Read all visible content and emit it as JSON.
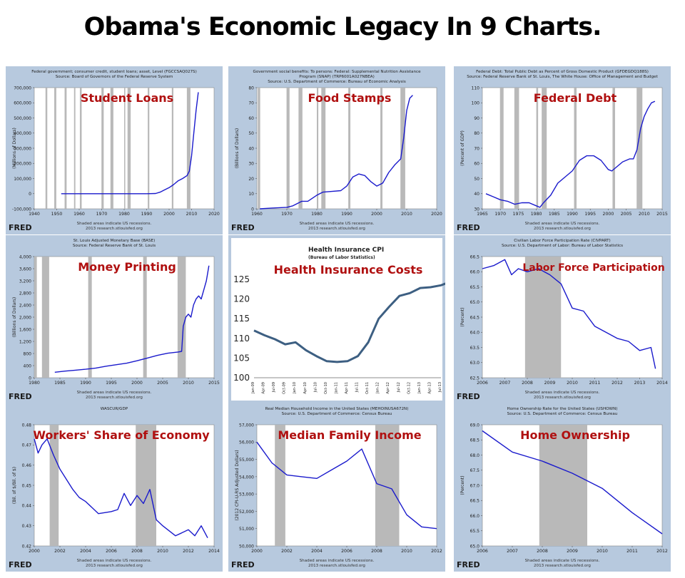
{
  "title": "Obama's Economic Legacy In 9 Charts.",
  "chart_data": [
    {
      "type": "line",
      "overlay": "Student Loans",
      "title": "Federal government; consumer credit, student loans; asset, Level (FGCCSAQ027S)",
      "subtitle": "Source: Board of Governors of the Federal Reserve System",
      "ylabel": "(Millions of Dollars)",
      "xlim": [
        1940,
        2020
      ],
      "ylim": [
        -100000,
        700000
      ],
      "xticks": [
        1940,
        1950,
        1960,
        1970,
        1980,
        1990,
        2000,
        2010,
        2020
      ],
      "yticks": [
        -100000,
        0,
        100000,
        200000,
        300000,
        400000,
        500000,
        600000,
        700000
      ],
      "ytick_labels": [
        "-100,000",
        "0",
        "100,000",
        "200,000",
        "300,000",
        "400,000",
        "500,000",
        "600,000",
        "700,000"
      ],
      "recessions": [
        [
          1945,
          1945.8
        ],
        [
          1948.9,
          1949.8
        ],
        [
          1953.5,
          1954.4
        ],
        [
          1957.7,
          1958.3
        ],
        [
          1960.3,
          1961.1
        ],
        [
          1969.9,
          1970.9
        ],
        [
          1973.9,
          1975.2
        ],
        [
          1980,
          1980.5
        ],
        [
          1981.5,
          1982.9
        ],
        [
          1990.5,
          1991.2
        ],
        [
          2001.2,
          2001.9
        ],
        [
          2007.9,
          2009.5
        ]
      ],
      "x": [
        1952,
        1960,
        1970,
        1980,
        1990,
        1994,
        1996,
        1998,
        2000,
        2002,
        2004,
        2006,
        2008,
        2009,
        2010,
        2011,
        2012,
        2013
      ],
      "y": [
        0,
        0,
        0,
        0,
        0,
        1000,
        10000,
        25000,
        40000,
        60000,
        85000,
        100000,
        120000,
        150000,
        250000,
        400000,
        550000,
        670000
      ],
      "fred": "FRED",
      "notes": [
        "Shaded areas indicate US recessions.",
        "2013 research.stlouisfed.org"
      ]
    },
    {
      "type": "line",
      "overlay": "Food Stamps",
      "title": "Government social benefits: To persons: Federal: Supplemental Nutrition Assistance",
      "title2": "Program (SNAP) (TRP6001A027NBEA)",
      "subtitle": "Source: U.S. Department of Commerce: Bureau of Economic Analysis",
      "ylabel": "(Billions of Dollars)",
      "xlim": [
        1960,
        2020
      ],
      "ylim": [
        0,
        80
      ],
      "xticks": [
        1960,
        1970,
        1980,
        1990,
        2000,
        2010,
        2020
      ],
      "yticks": [
        0,
        10,
        20,
        30,
        40,
        50,
        60,
        70,
        80
      ],
      "ytick_labels": [
        "0",
        "10",
        "20",
        "30",
        "40",
        "50",
        "60",
        "70",
        "80"
      ],
      "recessions": [
        [
          1960.3,
          1961.1
        ],
        [
          1969.9,
          1970.9
        ],
        [
          1973.9,
          1975.2
        ],
        [
          1980,
          1980.5
        ],
        [
          1981.5,
          1982.9
        ],
        [
          1990.5,
          1991.2
        ],
        [
          2001.2,
          2001.9
        ],
        [
          2007.9,
          2009.5
        ]
      ],
      "x": [
        1961,
        1965,
        1970,
        1972,
        1975,
        1977,
        1980,
        1982,
        1985,
        1988,
        1990,
        1992,
        1994,
        1996,
        1998,
        2000,
        2002,
        2004,
        2006,
        2008,
        2009,
        2010,
        2011,
        2012
      ],
      "y": [
        0,
        0.5,
        1,
        2,
        5,
        5,
        9,
        11,
        11.5,
        12,
        15,
        21,
        23,
        22,
        18,
        15,
        17,
        24,
        29,
        33,
        47,
        65,
        73,
        75
      ],
      "fred": "FRED",
      "notes": [
        "Shaded areas indicate US recessions.",
        "2013 research.stlouisfed.org"
      ]
    },
    {
      "type": "line",
      "overlay": "Federal Debt",
      "title": "Federal Debt: Total Public Debt as Percent of Gross Domestic Product (GFDEGDQ188S)",
      "subtitle": "Source: Federal Reserve Bank of St. Louis, The White House: Office of Management and Budget",
      "ylabel": "(Percent of GDP)",
      "xlim": [
        1965,
        2015
      ],
      "ylim": [
        30,
        110
      ],
      "xticks": [
        1965,
        1970,
        1975,
        1980,
        1985,
        1990,
        1995,
        2000,
        2005,
        2010,
        2015
      ],
      "yticks": [
        30,
        40,
        50,
        60,
        70,
        80,
        90,
        100,
        110
      ],
      "ytick_labels": [
        "30",
        "40",
        "50",
        "60",
        "70",
        "80",
        "90",
        "100",
        "110"
      ],
      "recessions": [
        [
          1969.9,
          1970.9
        ],
        [
          1973.9,
          1975.2
        ],
        [
          1980,
          1980.5
        ],
        [
          1981.5,
          1982.9
        ],
        [
          1990.5,
          1991.2
        ],
        [
          2001.2,
          2001.9
        ],
        [
          2007.9,
          2009.5
        ]
      ],
      "x": [
        1966,
        1968,
        1970,
        1972,
        1974,
        1976,
        1978,
        1980,
        1981,
        1982,
        1984,
        1986,
        1988,
        1990,
        1992,
        1994,
        1996,
        1998,
        2000,
        2001,
        2002,
        2004,
        2006,
        2007,
        2008,
        2009,
        2010,
        2011,
        2012,
        2013
      ],
      "y": [
        40,
        38,
        36,
        35,
        33,
        34,
        34,
        32,
        31,
        34,
        39,
        47,
        51,
        55,
        62,
        65,
        65,
        62,
        56,
        55,
        57,
        61,
        63,
        63,
        69,
        83,
        91,
        96,
        100,
        101
      ],
      "fred": "FRED",
      "notes": [
        "Shaded areas indicate US recessions.",
        "2013 research.stlouisfed.org"
      ]
    },
    {
      "type": "line",
      "overlay": "Money Printing",
      "title": "St. Louis Adjusted Monetary Base (BASE)",
      "subtitle": "Source: Federal Reserve Bank of St. Louis",
      "ylabel": "(Billions of Dollars)",
      "xlim": [
        1980,
        2015
      ],
      "ylim": [
        0,
        4000
      ],
      "xticks": [
        1980,
        1985,
        1990,
        1995,
        2000,
        2005,
        2010,
        2015
      ],
      "yticks": [
        0,
        400,
        800,
        1200,
        1600,
        2000,
        2400,
        2800,
        3200,
        3600,
        4000
      ],
      "ytick_labels": [
        "0",
        "400",
        "800",
        "1,200",
        "1,600",
        "2,000",
        "2,400",
        "2,800",
        "3,200",
        "3,600",
        "4,000"
      ],
      "recessions": [
        [
          1980,
          1980.5
        ],
        [
          1981.5,
          1982.9
        ],
        [
          1990.5,
          1991.2
        ],
        [
          2001.2,
          2001.9
        ],
        [
          2007.9,
          2009.5
        ]
      ],
      "x": [
        1984,
        1986,
        1988,
        1990,
        1992,
        1994,
        1996,
        1998,
        2000,
        2002,
        2004,
        2006,
        2008,
        2008.7,
        2009,
        2009.5,
        2010,
        2010.5,
        2011,
        2011.5,
        2012,
        2012.5,
        2013,
        2013.5,
        2014
      ],
      "y": [
        180,
        220,
        250,
        280,
        320,
        380,
        430,
        480,
        560,
        650,
        740,
        810,
        850,
        870,
        1700,
        2000,
        2100,
        2000,
        2400,
        2600,
        2700,
        2600,
        2900,
        3200,
        3700
      ],
      "fred": "FRED",
      "notes": [
        "Shaded areas indicate US recessions.",
        "2013 research.stlouisfed.org"
      ]
    },
    {
      "type": "line",
      "overlay": "Health Insurance Costs",
      "title": "Health Insurance CPI",
      "subtitle": "(Bureau of Labor Statistics)",
      "ylim": [
        100,
        125
      ],
      "yticks": [
        100,
        105,
        110,
        115,
        120,
        125
      ],
      "ytick_labels": [
        "100",
        "105",
        "110",
        "115",
        "120",
        "125"
      ],
      "xtick_labels": [
        "Jan-09",
        "Apr-09",
        "Jul-09",
        "Oct-09",
        "Jan-10",
        "Apr-10",
        "Jul-10",
        "Oct-10",
        "Jan-11",
        "Apr-11",
        "Jul-11",
        "Oct-11",
        "Jan-12",
        "Apr-12",
        "Jul-12",
        "Oct-12",
        "Jan-13",
        "Apr-13",
        "Jul-13"
      ],
      "x": [
        0,
        1,
        2,
        3,
        4,
        5,
        6,
        7,
        8,
        9,
        10,
        11,
        12,
        13,
        14,
        15,
        16,
        17,
        18,
        18.5
      ],
      "y": [
        112,
        110.8,
        109.8,
        108.5,
        109,
        107,
        105.5,
        104.2,
        104,
        104.2,
        105.5,
        109,
        115,
        118,
        120.8,
        121.5,
        122.8,
        123,
        123.5,
        124
      ],
      "recessions": []
    },
    {
      "type": "line",
      "overlay": "Labor Force Participation",
      "title": "Civilian Labor Force Participation Rate (CIVPART)",
      "subtitle": "Source: U.S. Department of Labor: Bureau of Labor Statistics",
      "ylabel": "(Percent)",
      "xlim": [
        2006,
        2014
      ],
      "ylim": [
        62.5,
        66.5
      ],
      "xticks": [
        2006,
        2007,
        2008,
        2009,
        2010,
        2011,
        2012,
        2013,
        2014
      ],
      "yticks": [
        62.5,
        63,
        63.5,
        64,
        64.5,
        65,
        65.5,
        66,
        66.5
      ],
      "ytick_labels": [
        "62.5",
        "63.0",
        "63.5",
        "64.0",
        "64.5",
        "65.0",
        "65.5",
        "66.0",
        "66.5"
      ],
      "recessions": [
        [
          2007.9,
          2009.5
        ]
      ],
      "x": [
        2006,
        2006.5,
        2007,
        2007.3,
        2007.6,
        2008,
        2008.5,
        2009,
        2009.5,
        2010,
        2010.5,
        2011,
        2011.5,
        2012,
        2012.5,
        2013,
        2013.5,
        2013.7
      ],
      "y": [
        66.1,
        66.2,
        66.4,
        65.9,
        66.1,
        66.0,
        66.1,
        65.9,
        65.6,
        64.8,
        64.7,
        64.2,
        64.0,
        63.8,
        63.7,
        63.4,
        63.5,
        62.8
      ],
      "fred": "FRED",
      "notes": [
        "Shaded areas indicate US recessions.",
        "2013 research.stlouisfed.org"
      ]
    },
    {
      "type": "line",
      "overlay": "Workers' Share of Economy",
      "title": "WASCUR/GDP",
      "ylabel": "(Bil. of $/Bil. of $)",
      "xlim": [
        2000,
        2014
      ],
      "ylim": [
        0.42,
        0.48
      ],
      "xticks": [
        2000,
        2002,
        2004,
        2006,
        2008,
        2010,
        2012,
        2014
      ],
      "yticks": [
        0.42,
        0.43,
        0.44,
        0.45,
        0.46,
        0.47,
        0.48
      ],
      "ytick_labels": [
        "0.42",
        "0.43",
        "0.44",
        "0.45",
        "0.46",
        "0.47",
        "0.48"
      ],
      "recessions": [
        [
          2001.2,
          2001.9
        ],
        [
          2007.9,
          2009.5
        ]
      ],
      "x": [
        2000,
        2000.3,
        2000.6,
        2001,
        2001.5,
        2002,
        2003,
        2003.5,
        2004,
        2005,
        2006,
        2006.5,
        2007,
        2007.5,
        2008,
        2008.5,
        2009,
        2009.5,
        2010,
        2011,
        2012,
        2012.5,
        2013,
        2013.5
      ],
      "y": [
        0.473,
        0.466,
        0.47,
        0.473,
        0.465,
        0.458,
        0.448,
        0.444,
        0.442,
        0.436,
        0.437,
        0.438,
        0.446,
        0.44,
        0.445,
        0.441,
        0.448,
        0.433,
        0.43,
        0.425,
        0.428,
        0.425,
        0.43,
        0.424
      ],
      "fred": "FRED",
      "notes": [
        "Shaded areas indicate US recessions.",
        "2013 research.stlouisfed.org"
      ]
    },
    {
      "type": "line",
      "overlay": "Median Family Income",
      "title": "Real Median Household Income in the United States (MEHOINUSA672N)",
      "subtitle": "Source: U.S. Department of Commerce: Census Bureau",
      "ylabel": "(2012 CPI-U-RS Adjusted Dollars)",
      "xlim": [
        2000,
        2012
      ],
      "ylim": [
        50000,
        57000
      ],
      "xticks": [
        2000,
        2002,
        2004,
        2006,
        2008,
        2010,
        2012
      ],
      "yticks": [
        50000,
        51000,
        52000,
        53000,
        54000,
        55000,
        56000,
        57000
      ],
      "ytick_labels": [
        "50,000",
        "51,000",
        "52,000",
        "53,000",
        "54,000",
        "55,000",
        "56,000",
        "57,000"
      ],
      "recessions": [
        [
          2001.2,
          2001.9
        ],
        [
          2007.9,
          2009.5
        ]
      ],
      "x": [
        2000,
        2001,
        2002,
        2003,
        2004,
        2005,
        2006,
        2007,
        2008,
        2009,
        2010,
        2011,
        2012
      ],
      "y": [
        56000,
        54800,
        54100,
        54000,
        53900,
        54400,
        54900,
        55600,
        53600,
        53300,
        51800,
        51100,
        51000
      ],
      "fred": "FRED",
      "notes": [
        "Shaded areas indicate US recessions.",
        "2013 research.stlouisfed.org"
      ]
    },
    {
      "type": "line",
      "overlay": "Home Ownership",
      "title": "Home Ownership Rate for the United States (USHOWN)",
      "subtitle": "Source: U.S. Department of Commerce: Census Bureau",
      "ylabel": "(Percent)",
      "xlim": [
        2006,
        2012
      ],
      "ylim": [
        65.0,
        69.0
      ],
      "xticks": [
        2006,
        2007,
        2008,
        2009,
        2010,
        2011,
        2012
      ],
      "yticks": [
        65.0,
        65.5,
        66.0,
        66.5,
        67.0,
        67.5,
        68.0,
        68.5,
        69.0
      ],
      "ytick_labels": [
        "65.0",
        "65.5",
        "66.0",
        "66.5",
        "67.0",
        "67.5",
        "68.0",
        "68.5",
        "69.0"
      ],
      "recessions": [
        [
          2007.9,
          2009.5
        ]
      ],
      "x": [
        2006,
        2007,
        2008,
        2009,
        2010,
        2011,
        2012
      ],
      "y": [
        68.8,
        68.1,
        67.8,
        67.4,
        66.9,
        66.1,
        65.4
      ],
      "fred": "FRED",
      "notes": [
        "Shaded areas indicate US recessions.",
        "2013 research.stlouisfed.org"
      ]
    }
  ]
}
